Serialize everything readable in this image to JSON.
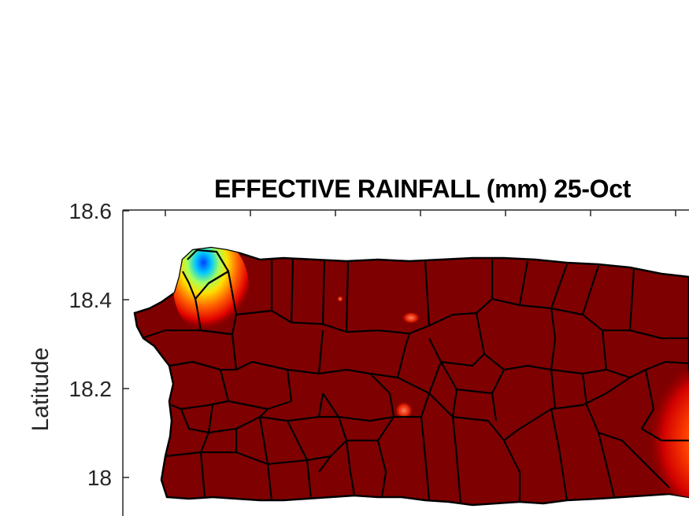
{
  "title": "EFFECTIVE RAINFALL (mm) 25-Oct",
  "ylabel": "Latitude",
  "yticks": [
    "18.6",
    "18.4",
    "18.2",
    "18"
  ],
  "colors": {
    "land_base": "#7f0000",
    "island_outline": "#000000",
    "axis": "#262626",
    "scale_low": "#0000ff",
    "scale_high": "#7f0000"
  },
  "map": {
    "region": "Puerto Rico",
    "lat_range": [
      17.9,
      18.6
    ],
    "colormap": "jet",
    "high_rainfall_areas": [
      "northwest corner",
      "east coast",
      "small central patches"
    ]
  }
}
